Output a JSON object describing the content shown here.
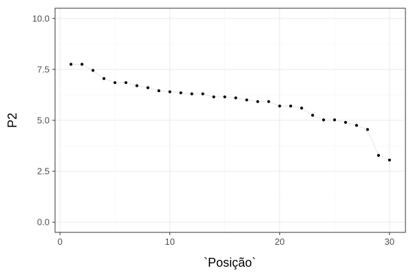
{
  "chart_data": {
    "type": "line",
    "xlabel": "`Posição`",
    "ylabel": "P2",
    "xlim": [
      -0.45,
      31.45
    ],
    "ylim": [
      -0.5,
      10.5
    ],
    "x_ticks": [
      0,
      10,
      20,
      30
    ],
    "x_minor_ticks": [
      5,
      15,
      25
    ],
    "y_ticks": [
      0.0,
      2.5,
      5.0,
      7.5,
      10.0
    ],
    "y_tick_labels": [
      "0.0",
      "2.5",
      "5.0",
      "7.5",
      "10.0"
    ],
    "y_minor_ticks": [
      1.25,
      3.75,
      6.25,
      8.75
    ],
    "grid": true,
    "legend": "none",
    "colors": {
      "points": "#000000",
      "line": "#e6e6e6",
      "grid_major": "#ebebeb",
      "grid_minor": "#f5f5f5",
      "border": "#333333"
    },
    "series": [
      {
        "x": [
          1,
          2,
          3,
          4,
          5,
          6,
          7,
          8,
          9,
          10,
          11,
          12,
          13,
          14,
          15,
          16,
          17,
          18,
          19,
          20,
          21,
          22,
          23,
          24,
          25,
          26,
          27,
          28,
          29,
          30
        ],
        "y": [
          7.75,
          7.75,
          7.45,
          7.05,
          6.85,
          6.85,
          6.7,
          6.6,
          6.45,
          6.4,
          6.35,
          6.3,
          6.3,
          6.15,
          6.15,
          6.1,
          6.0,
          5.92,
          5.92,
          5.7,
          5.7,
          5.6,
          5.25,
          5.02,
          5.02,
          4.9,
          4.75,
          4.55,
          3.28,
          3.05
        ]
      }
    ]
  }
}
